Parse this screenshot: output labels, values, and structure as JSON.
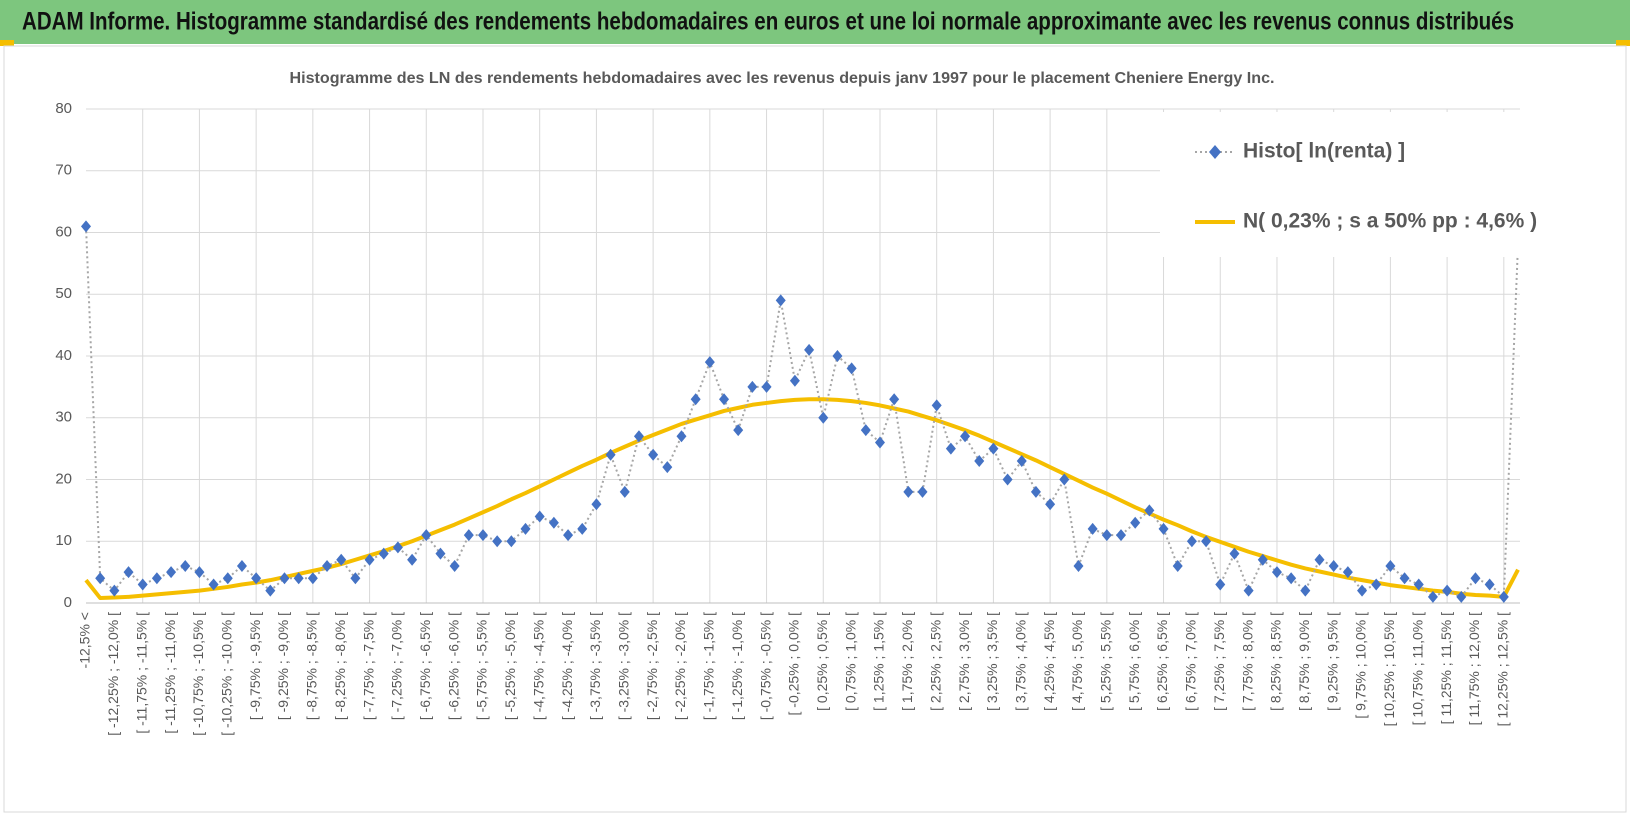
{
  "header": {
    "title": "ADAM Informe. Histogramme standardisé des rendements hebdomadaires en euros et une loi normale approximante avec les revenus connus distribués"
  },
  "chart_data": {
    "type": "line",
    "title": "Histogramme des LN des rendements hebdomadaires avec les revenus depuis janv 1997 pour le placement Cheniere Energy Inc.",
    "categories": [
      "-12,5% <",
      null,
      "[ -12,25% ; -12,0% [",
      null,
      "[ -11,75% ; -11,5% [",
      null,
      "[ -11,25% ; -11,0% [",
      null,
      "[ -10,75% ; -10,5% [",
      null,
      "[ -10,25% ; -10,0% [",
      null,
      "[ -9,75% ; -9,5% [",
      null,
      "[ -9,25% ; -9,0% [",
      null,
      "[ -8,75% ; -8,5% [",
      null,
      "[ -8,25% ; -8,0% [",
      null,
      "[ -7,75% ; -7,5% [",
      null,
      "[ -7,25% ; -7,0% [",
      null,
      "[ -6,75% ; -6,5% [",
      null,
      "[ -6,25% ; -6,0% [",
      null,
      "[ -5,75% ; -5,5% [",
      null,
      "[ -5,25% ; -5,0% [",
      null,
      "[ -4,75% ; -4,5% [",
      null,
      "[ -4,25% ; -4,0% [",
      null,
      "[ -3,75% ; -3,5% [",
      null,
      "[ -3,25% ; -3,0% [",
      null,
      "[ -2,75% ; -2,5% [",
      null,
      "[ -2,25% ; -2,0% [",
      null,
      "[ -1,75% ; -1,5% [",
      null,
      "[ -1,25% ; -1,0% [",
      null,
      "[ -0,75% ; -0,5% [",
      null,
      "[ -0,25% ; 0,0% [",
      null,
      "[ 0,25% ; 0,5% [",
      null,
      "[ 0,75% ; 1,0% [",
      null,
      "[ 1,25% ; 1,5% [",
      null,
      "[ 1,75% ; 2,0% [",
      null,
      "[ 2,25% ; 2,5% [",
      null,
      "[ 2,75% ; 3,0% [",
      null,
      "[ 3,25% ; 3,5% [",
      null,
      "[ 3,75% ; 4,0% [",
      null,
      "[ 4,25% ; 4,5% [",
      null,
      "[ 4,75% ; 5,0% [",
      null,
      "[ 5,25% ; 5,5% [",
      null,
      "[ 5,75% ; 6,0% [",
      null,
      "[ 6,25% ; 6,5% [",
      null,
      "[ 6,75% ; 7,0% [",
      null,
      "[ 7,25% ; 7,5% [",
      null,
      "[ 7,75% ; 8,0% [",
      null,
      "[ 8,25% ; 8,5% [",
      null,
      "[ 8,75% ; 9,0% [",
      null,
      "[ 9,25% ; 9,5% [",
      null,
      "[ 9,75% ; 10,0% [",
      null,
      "[ 10,25% ; 10,5% [",
      null,
      "[ 10,75% ; 11,0% [",
      null,
      "[ 11,25% ; 11,5% [",
      null,
      "[ 11,75% ; 12,0% [",
      null,
      "[ 12,25% ; 12,5% [",
      null
    ],
    "series": [
      {
        "name": "Histo[ ln(renta) ]",
        "color": "#4472c4",
        "line_color": "#a6a6a6",
        "marker": "diamond",
        "dash": "dotted",
        "values": [
          61,
          4,
          2,
          5,
          3,
          4,
          5,
          6,
          5,
          3,
          4,
          6,
          4,
          2,
          4,
          4,
          4,
          6,
          7,
          4,
          7,
          8,
          9,
          7,
          11,
          8,
          6,
          11,
          11,
          10,
          10,
          12,
          14,
          13,
          11,
          12,
          16,
          24,
          18,
          27,
          24,
          22,
          27,
          33,
          39,
          33,
          28,
          35,
          35,
          49,
          36,
          41,
          30,
          40,
          38,
          28,
          26,
          33,
          18,
          18,
          32,
          25,
          27,
          23,
          25,
          20,
          23,
          18,
          16,
          20,
          6,
          12,
          11,
          11,
          13,
          15,
          12,
          6,
          10,
          10,
          3,
          8,
          2,
          7,
          5,
          4,
          2,
          7,
          6,
          5,
          2,
          3,
          6,
          4,
          3,
          1,
          2,
          1,
          4,
          3,
          1,
          58
        ]
      },
      {
        "name": "N( 0,23% ; s a 50% pp : 4,6% )",
        "color": "#f5be00",
        "values": [
          3.7,
          0.8,
          0.9,
          1.0,
          1.2,
          1.4,
          1.6,
          1.8,
          2.0,
          2.3,
          2.6,
          3.0,
          3.3,
          3.7,
          4.2,
          4.7,
          5.2,
          5.7,
          6.3,
          7.0,
          7.7,
          8.4,
          9.2,
          10.0,
          10.9,
          11.8,
          12.7,
          13.7,
          14.7,
          15.7,
          16.8,
          17.8,
          18.9,
          20.0,
          21.1,
          22.2,
          23.2,
          24.3,
          25.3,
          26.3,
          27.2,
          28.1,
          29.0,
          29.7,
          30.4,
          31.1,
          31.6,
          32.1,
          32.4,
          32.7,
          32.9,
          33.0,
          33.0,
          32.9,
          32.7,
          32.4,
          32.0,
          31.5,
          31.0,
          30.3,
          29.6,
          28.8,
          28.0,
          27.1,
          26.1,
          25.1,
          24.1,
          23.1,
          22.0,
          20.9,
          19.8,
          18.7,
          17.7,
          16.6,
          15.5,
          14.5,
          13.5,
          12.6,
          11.6,
          10.7,
          9.9,
          9.1,
          8.3,
          7.6,
          6.9,
          6.2,
          5.6,
          5.1,
          4.6,
          4.1,
          3.7,
          3.3,
          2.9,
          2.6,
          2.3,
          2.0,
          1.8,
          1.5,
          1.3,
          1.2,
          1.0,
          5.4
        ]
      }
    ],
    "ylim": [
      0,
      80
    ],
    "yticks": [
      0,
      10,
      20,
      30,
      40,
      50,
      60,
      70,
      80
    ],
    "grid": true,
    "legend": "top-right"
  }
}
